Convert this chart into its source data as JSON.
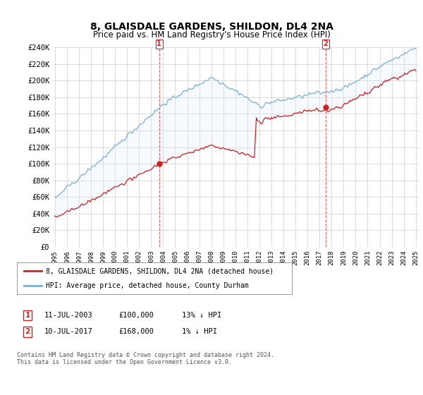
{
  "title": "8, GLAISDALE GARDENS, SHILDON, DL4 2NA",
  "subtitle": "Price paid vs. HM Land Registry's House Price Index (HPI)",
  "ylabel_ticks": [
    "£0",
    "£20K",
    "£40K",
    "£60K",
    "£80K",
    "£100K",
    "£120K",
    "£140K",
    "£160K",
    "£180K",
    "£200K",
    "£220K",
    "£240K"
  ],
  "ylim": [
    0,
    240000
  ],
  "ytick_vals": [
    0,
    20000,
    40000,
    60000,
    80000,
    100000,
    120000,
    140000,
    160000,
    180000,
    200000,
    220000,
    240000
  ],
  "hpi_color": "#7ab0d4",
  "hpi_fill_color": "#ddeeff",
  "price_color": "#cc2222",
  "marker1_x": 104,
  "marker1_value": 100000,
  "marker2_x": 270,
  "marker2_value": 168000,
  "legend_label1": "8, GLAISDALE GARDENS, SHILDON, DL4 2NA (detached house)",
  "legend_label2": "HPI: Average price, detached house, County Durham",
  "footer": "Contains HM Land Registry data © Crown copyright and database right 2024.\nThis data is licensed under the Open Government Licence v3.0.",
  "bg_color": "#ffffff",
  "grid_color": "#cccccc",
  "n_months": 361
}
